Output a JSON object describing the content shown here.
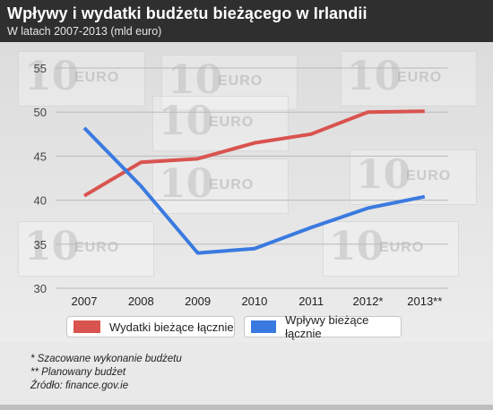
{
  "header": {
    "title": "Wpływy i wydatki budżetu bieżącego w Irlandii",
    "subtitle": "W latach 2007-2013 (mld euro)"
  },
  "background": {
    "banknote_digits": "10",
    "banknote_word": "EURO"
  },
  "chart_data": {
    "type": "line",
    "title": "Wpływy i wydatki budżetu bieżącego w Irlandii",
    "subtitle": "W latach 2007-2013 (mld euro)",
    "categories": [
      "2007",
      "2008",
      "2009",
      "2010",
      "2011",
      "2012*",
      "2013**"
    ],
    "ylim": [
      30,
      55
    ],
    "yticks": [
      30,
      35,
      40,
      45,
      50,
      55
    ],
    "grid": true,
    "legend_position": "bottom",
    "series": [
      {
        "name": "Wydatki bieżące łącznie",
        "color": "#d9534f",
        "values": [
          40.5,
          44.3,
          44.7,
          46.5,
          47.5,
          50.0,
          50.1
        ]
      },
      {
        "name": "Wpływy bieżące łącznie",
        "color": "#3a7ae0",
        "values": [
          48.2,
          41.6,
          34.0,
          34.5,
          36.9,
          39.1,
          40.4
        ]
      }
    ]
  },
  "footnotes": [
    "* Szacowane wykonanie budżetu",
    "** Planowany budżet",
    "Źródło: finance.gov.ie"
  ]
}
